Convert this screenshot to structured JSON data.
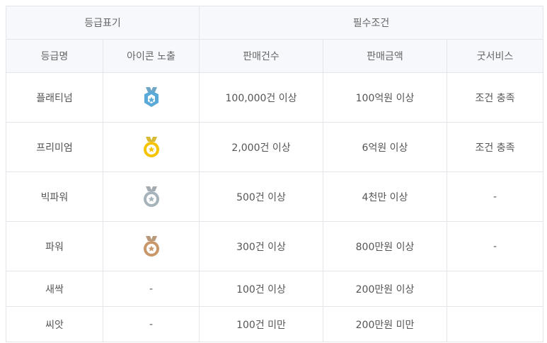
{
  "header": {
    "group1": "등급표기",
    "group2": "필수조건",
    "cols": [
      "등급명",
      "아이콘 노출",
      "판매건수",
      "판매금액",
      "굿서비스"
    ]
  },
  "rows": [
    {
      "name": "플래티넘",
      "icon": "platinum-hexagon-badge-icon",
      "count": "100,000건 이상",
      "amount": "100억원 이상",
      "service": "조건 충족",
      "color": "#5aaad8"
    },
    {
      "name": "프리미엄",
      "icon": "gold-medal-icon",
      "count": "2,000건 이상",
      "amount": "6억원 이상",
      "service": "조건 충족",
      "color": "#f5c400"
    },
    {
      "name": "빅파워",
      "icon": "silver-medal-icon",
      "count": "500건 이상",
      "amount": "4천만 이상",
      "service": "-",
      "color": "#a7b3bb"
    },
    {
      "name": "파워",
      "icon": "bronze-medal-icon",
      "count": "300건 이상",
      "amount": "800만원 이상",
      "service": "-",
      "color": "#c8976a"
    },
    {
      "name": "새싹",
      "icon_text": "-",
      "count": "100건 이상",
      "amount": "200만원 이상",
      "service": ""
    },
    {
      "name": "씨앗",
      "icon_text": "-",
      "count": "100건 미만",
      "amount": "200만원 미만",
      "service": ""
    }
  ]
}
